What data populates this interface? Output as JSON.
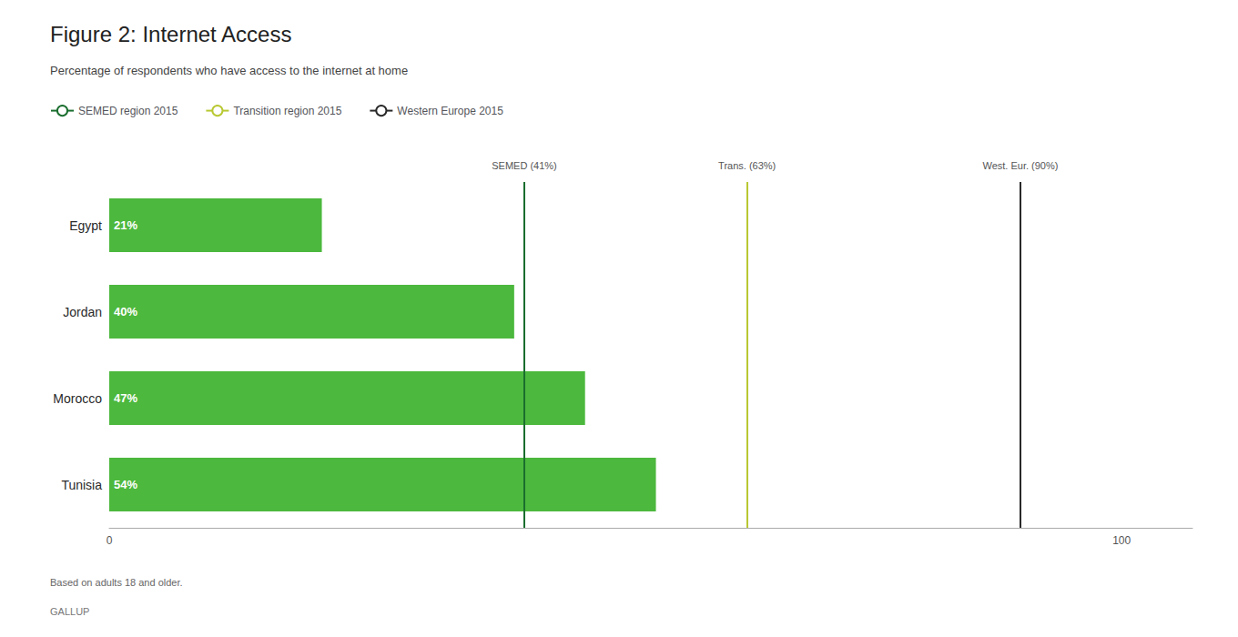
{
  "chart_data": {
    "type": "bar",
    "orientation": "horizontal",
    "title": "Figure 2: Internet Access",
    "subtitle": "Percentage of respondents who have access to the internet at home",
    "footnote": "Based on adults 18 and older.",
    "source": "GALLUP",
    "categories": [
      "Egypt",
      "Jordan",
      "Morocco",
      "Tunisia"
    ],
    "values": [
      21,
      40,
      47,
      54
    ],
    "value_labels": [
      "21%",
      "40%",
      "47%",
      "54%"
    ],
    "data_labels": true,
    "color": "#4cb83d",
    "xlim": [
      0,
      107
    ],
    "xticks": [
      0,
      100
    ],
    "grid": false,
    "legend": "upper left",
    "reference_lines": [
      {
        "name": "SEMED region 2015",
        "x": 41,
        "color": "#1a6e2e",
        "line_style": "solid",
        "annotation": "SEMED (41%)"
      },
      {
        "name": "Transition region 2015",
        "x": 63,
        "color": "#b8c832",
        "line_style": "solid",
        "annotation": "Trans. (63%)"
      },
      {
        "name": "Western Europe 2015",
        "x": 90,
        "color": "#2a2a2a",
        "line_style": "solid",
        "annotation": "West. Eur. (90%)"
      }
    ]
  }
}
